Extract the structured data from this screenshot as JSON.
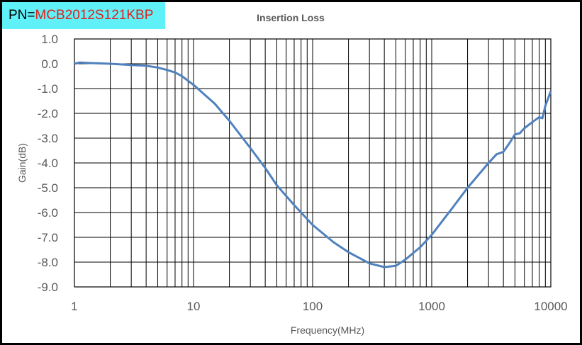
{
  "part_label": {
    "prefix": "PN=",
    "value": "MCB2012S121KBP"
  },
  "chart_data": {
    "type": "line",
    "title": "Insertion Loss",
    "xlabel": "Frequency(MHz)",
    "ylabel": "Gain(dB)",
    "xscale": "log",
    "xlim": [
      1,
      10000
    ],
    "ylim": [
      -9.0,
      1.0
    ],
    "x_ticks": [
      "1",
      "10",
      "100",
      "1000",
      "10000"
    ],
    "y_ticks": [
      "1.0",
      "0.0",
      "-1.0",
      "-2.0",
      "-3.0",
      "-4.0",
      "-5.0",
      "-6.0",
      "-7.0",
      "-8.0",
      "-9.0"
    ],
    "grid": true,
    "legend": "none",
    "line_color": "#4f81bd",
    "series": [
      {
        "x": [
          1,
          1.1,
          1.5,
          2,
          3,
          4,
          5,
          6,
          7,
          8,
          10,
          15,
          20,
          30,
          40,
          50,
          70,
          100,
          150,
          200,
          300,
          400,
          500,
          600,
          800,
          1000,
          1500,
          2000,
          3000,
          3500,
          4000,
          4500,
          5000,
          5500,
          6000,
          7000,
          8000,
          8500,
          9000,
          10000
        ],
        "y": [
          0.0,
          0.05,
          0.02,
          0.0,
          -0.05,
          -0.08,
          -0.15,
          -0.25,
          -0.35,
          -0.5,
          -0.85,
          -1.6,
          -2.3,
          -3.4,
          -4.2,
          -4.9,
          -5.7,
          -6.5,
          -7.2,
          -7.6,
          -8.05,
          -8.2,
          -8.15,
          -7.9,
          -7.4,
          -6.9,
          -5.8,
          -5.0,
          -4.0,
          -3.65,
          -3.55,
          -3.2,
          -2.85,
          -2.8,
          -2.6,
          -2.35,
          -2.15,
          -2.2,
          -1.7,
          -1.1
        ]
      }
    ]
  }
}
